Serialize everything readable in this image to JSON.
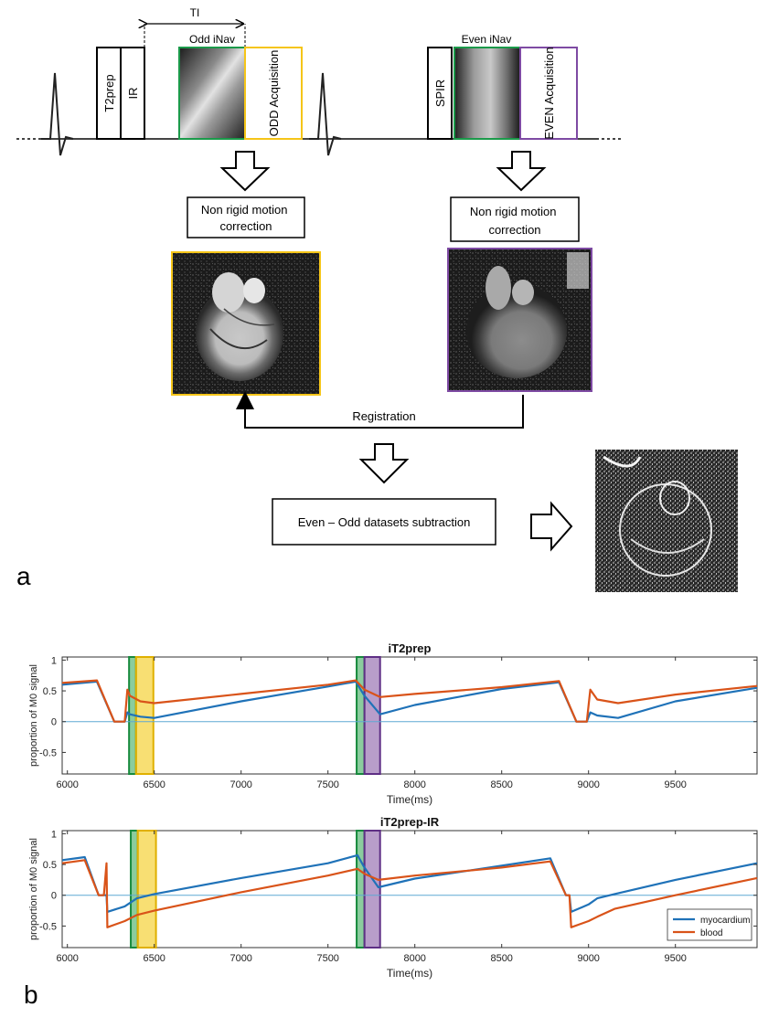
{
  "panel_a": {
    "label": "a",
    "seq_boxes": {
      "t2prep": "T2prep",
      "ir": "IR",
      "odd_acq": "ODD Acquisition",
      "spir": "SPIR",
      "even_acq": "EVEN Acquisition"
    },
    "ti_label": "TI",
    "odd_inav_label": "Odd iNav",
    "even_inav_label": "Even iNav",
    "nrmc_left": "Non rigid motion correction",
    "nrmc_right": "Non rigid motion correction",
    "registration_label": "Registration",
    "subtraction_label": "Even – Odd datasets subtraction",
    "colors": {
      "odd": "#f5c518",
      "even": "#7e4aa3",
      "inav": "#1b9a4a"
    }
  },
  "panel_b": {
    "label": "b",
    "legend": {
      "myocardium": "myocardium",
      "blood": "blood"
    },
    "colors": {
      "myocardium": "#1f72b8",
      "blood": "#d95319",
      "inav": "#2ca24f",
      "odd": "#f2c400",
      "even": "#7d4c9e",
      "zero_line": "#5fa8d3"
    }
  },
  "chart_data": [
    {
      "type": "line",
      "title": "iT2prep",
      "xlabel": "Time(ms)",
      "ylabel": "proportion of M0 signal",
      "xlim": [
        5970,
        9970
      ],
      "ylim": [
        -0.85,
        1.05
      ],
      "xticks": [
        6000,
        6500,
        7000,
        7500,
        8000,
        8500,
        9000,
        9500
      ],
      "yticks": [
        1,
        0.5,
        0,
        -0.5
      ],
      "grid": false,
      "shaded_windows": [
        {
          "kind": "inav",
          "x": [
            6355,
            6395
          ]
        },
        {
          "kind": "odd",
          "x": [
            6395,
            6495
          ]
        },
        {
          "kind": "inav",
          "x": [
            7665,
            7710
          ]
        },
        {
          "kind": "even",
          "x": [
            7710,
            7800
          ]
        },
        {
          "kind": "inav",
          "x": [
            1,
            1
          ],
          "hidden": true
        }
      ],
      "series": [
        {
          "name": "myocardium",
          "x": [
            5970,
            6170,
            6270,
            6310,
            6330,
            6345,
            6360,
            6420,
            6500,
            7000,
            7500,
            7660,
            7710,
            7800,
            8000,
            8500,
            8830,
            8930,
            8970,
            8990,
            9010,
            9050,
            9170,
            9500,
            9970
          ],
          "y": [
            0.6,
            0.65,
            0.0,
            0.0,
            0.0,
            0.15,
            0.12,
            0.08,
            0.06,
            0.33,
            0.57,
            0.65,
            0.42,
            0.12,
            0.27,
            0.53,
            0.64,
            0.0,
            0.0,
            0.0,
            0.15,
            0.1,
            0.06,
            0.33,
            0.55
          ]
        },
        {
          "name": "blood",
          "x": [
            5970,
            6170,
            6270,
            6310,
            6330,
            6345,
            6360,
            6420,
            6500,
            7000,
            7500,
            7660,
            7710,
            7800,
            8000,
            8500,
            8830,
            8930,
            8970,
            8990,
            9010,
            9050,
            9170,
            9500,
            9970
          ],
          "y": [
            0.63,
            0.67,
            0.0,
            0.0,
            0.0,
            0.52,
            0.42,
            0.33,
            0.3,
            0.45,
            0.6,
            0.67,
            0.52,
            0.4,
            0.45,
            0.56,
            0.66,
            0.0,
            0.0,
            0.0,
            0.52,
            0.36,
            0.3,
            0.44,
            0.58
          ]
        }
      ]
    },
    {
      "type": "line",
      "title": "iT2prep-IR",
      "xlabel": "Time(ms)",
      "ylabel": "proportion of M0 signal",
      "xlim": [
        5970,
        9970
      ],
      "ylim": [
        -0.85,
        1.05
      ],
      "xticks": [
        6000,
        6500,
        7000,
        7500,
        8000,
        8500,
        9000,
        9500
      ],
      "yticks": [
        1,
        0.5,
        0,
        -0.5
      ],
      "grid": false,
      "legend_position": "bottom-right",
      "shaded_windows": [
        {
          "kind": "inav",
          "x": [
            6365,
            6405
          ]
        },
        {
          "kind": "odd",
          "x": [
            6405,
            6510
          ]
        },
        {
          "kind": "inav",
          "x": [
            7665,
            7710
          ]
        },
        {
          "kind": "even",
          "x": [
            7710,
            7800
          ]
        }
      ],
      "series": [
        {
          "name": "myocardium",
          "x": [
            5970,
            6100,
            6180,
            6210,
            6225,
            6230,
            6330,
            6400,
            6500,
            7000,
            7500,
            7670,
            7710,
            7790,
            8000,
            8500,
            8780,
            8870,
            8890,
            8900,
            9000,
            9050,
            9150,
            9500,
            9970
          ],
          "y": [
            0.57,
            0.62,
            0.0,
            0.0,
            0.0,
            -0.27,
            -0.18,
            -0.05,
            0.02,
            0.28,
            0.52,
            0.65,
            0.45,
            0.13,
            0.27,
            0.48,
            0.6,
            0.0,
            0.0,
            -0.27,
            -0.15,
            -0.05,
            0.02,
            0.25,
            0.52
          ]
        },
        {
          "name": "blood",
          "x": [
            5970,
            6100,
            6180,
            6210,
            6225,
            6230,
            6330,
            6400,
            6500,
            7000,
            7500,
            7670,
            7710,
            7790,
            8000,
            8500,
            8780,
            8870,
            8890,
            8900,
            9000,
            9050,
            9150,
            9500,
            9970
          ],
          "y": [
            0.52,
            0.57,
            0.0,
            0.0,
            0.52,
            -0.52,
            -0.42,
            -0.32,
            -0.25,
            0.05,
            0.32,
            0.43,
            0.35,
            0.25,
            0.32,
            0.45,
            0.55,
            0.0,
            0.0,
            -0.52,
            -0.42,
            -0.35,
            -0.22,
            0.0,
            0.28
          ]
        }
      ]
    }
  ]
}
